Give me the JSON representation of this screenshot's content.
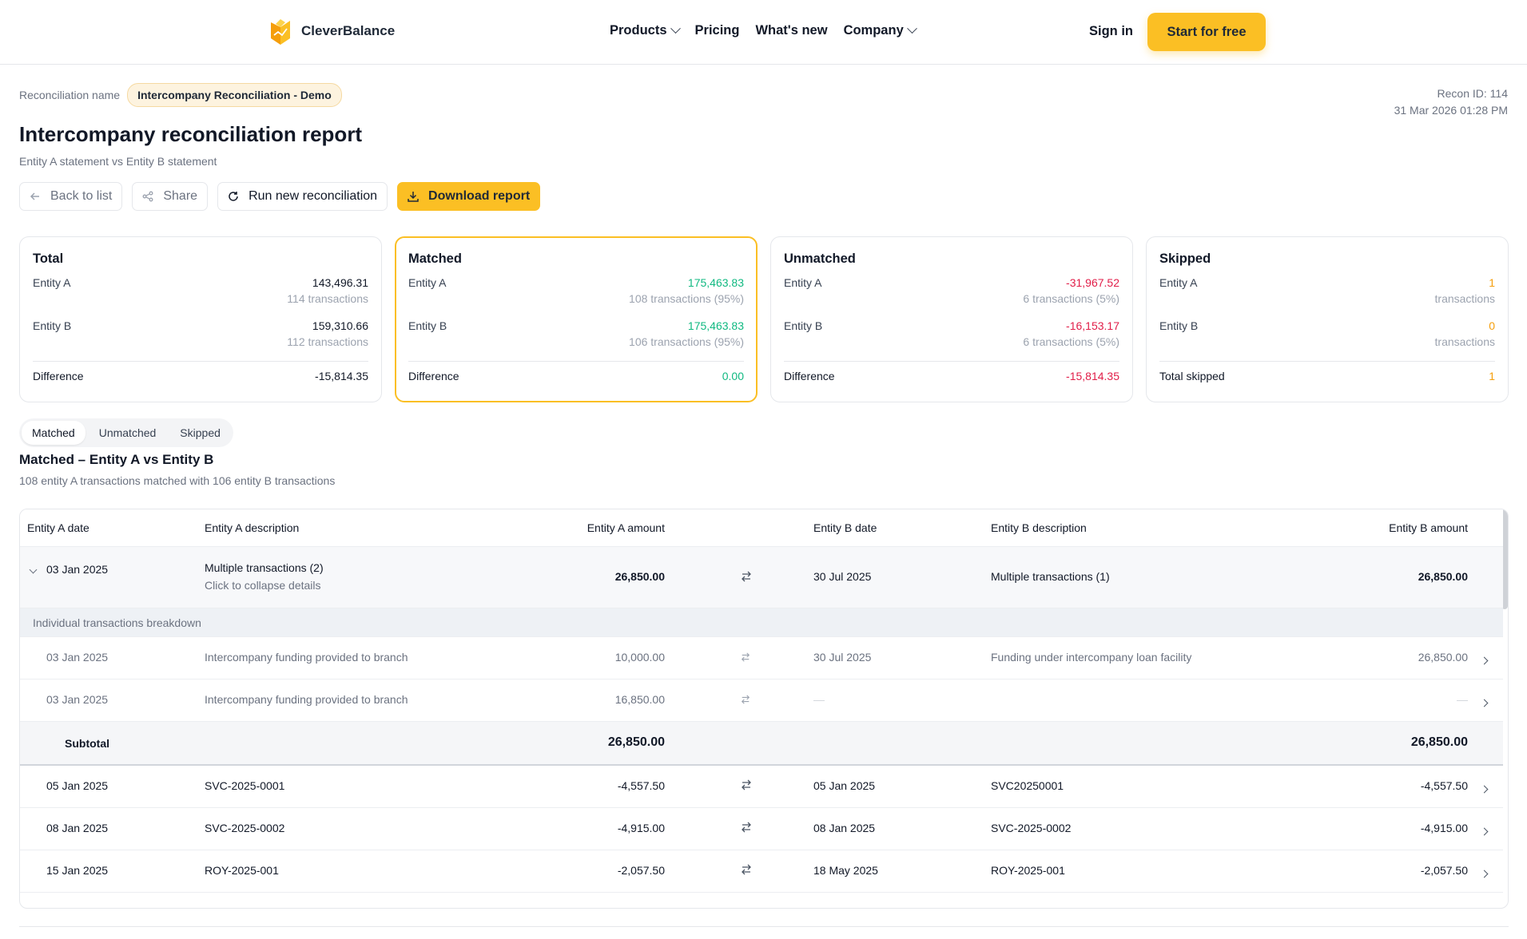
{
  "nav": {
    "brand": "CleverBalance",
    "links": [
      "Products",
      "Pricing",
      "What's new",
      "Company"
    ],
    "sign_in": "Sign in",
    "cta": "Start for free"
  },
  "header": {
    "recon_label": "Reconciliation name",
    "recon_name": "Intercompany Reconciliation - Demo",
    "recon_id": "Recon ID: 114",
    "timestamp": "31 Mar 2026 01:28 PM",
    "title": "Intercompany reconciliation report",
    "subtitle": "Entity A statement vs Entity B statement"
  },
  "actions": {
    "back": "Back to list",
    "share": "Share",
    "run": "Run new reconciliation",
    "download": "Download report"
  },
  "cards": {
    "total": {
      "title": "Total",
      "a_label": "Entity A",
      "a_value": "143,496.31",
      "a_sub": "114 transactions",
      "b_label": "Entity B",
      "b_value": "159,310.66",
      "b_sub": "112 transactions",
      "diff_label": "Difference",
      "diff_value": "-15,814.35"
    },
    "matched": {
      "title": "Matched",
      "a_label": "Entity A",
      "a_value": "175,463.83",
      "a_sub": "108 transactions (95%)",
      "b_label": "Entity B",
      "b_value": "175,463.83",
      "b_sub": "106 transactions (95%)",
      "diff_label": "Difference",
      "diff_value": "0.00"
    },
    "unmatched": {
      "title": "Unmatched",
      "a_label": "Entity A",
      "a_value": "-31,967.52",
      "a_sub": "6 transactions (5%)",
      "b_label": "Entity B",
      "b_value": "-16,153.17",
      "b_sub": "6 transactions (5%)",
      "diff_label": "Difference",
      "diff_value": "-15,814.35"
    },
    "skipped": {
      "title": "Skipped",
      "a_label": "Entity A",
      "a_value": "1",
      "a_sub": "transactions",
      "b_label": "Entity B",
      "b_value": "0",
      "b_sub": "transactions",
      "diff_label": "Total skipped",
      "diff_value": "1"
    }
  },
  "tabs": [
    "Matched",
    "Unmatched",
    "Skipped"
  ],
  "section": {
    "title": "Matched – Entity A vs Entity B",
    "subtitle": "108 entity A transactions matched with 106 entity B transactions"
  },
  "table": {
    "headers": [
      "Entity A date",
      "Entity A description",
      "Entity A amount",
      "Entity B date",
      "Entity B description",
      "Entity B amount"
    ],
    "group": {
      "a_date": "03 Jan 2025",
      "a_desc": "Multiple transactions (2)",
      "a_hint": "Click to collapse details",
      "a_amount": "26,850.00",
      "b_date": "30 Jul 2025",
      "b_desc": "Multiple transactions (1)",
      "b_amount": "26,850.00"
    },
    "breakdown_label": "Individual transactions breakdown",
    "sub_rows": [
      {
        "a_date": "03 Jan 2025",
        "a_desc": "Intercompany funding provided to branch",
        "a_amount": "10,000.00",
        "b_date": "30 Jul 2025",
        "b_desc": "Funding under intercompany loan facility",
        "b_amount": "26,850.00"
      },
      {
        "a_date": "03 Jan 2025",
        "a_desc": "Intercompany funding provided to branch",
        "a_amount": "16,850.00",
        "b_date": "—",
        "b_desc": "",
        "b_amount": "—"
      }
    ],
    "subtotal": {
      "label": "Subtotal",
      "a_amount": "26,850.00",
      "b_amount": "26,850.00"
    },
    "rows": [
      {
        "a_date": "05 Jan 2025",
        "a_desc": "SVC-2025-0001",
        "a_amount": "-4,557.50",
        "b_date": "05 Jan 2025",
        "b_desc": "SVC20250001",
        "b_amount": "-4,557.50"
      },
      {
        "a_date": "08 Jan 2025",
        "a_desc": "SVC-2025-0002",
        "a_amount": "-4,915.00",
        "b_date": "08 Jan 2025",
        "b_desc": "SVC-2025-0002",
        "b_amount": "-4,915.00"
      },
      {
        "a_date": "15 Jan 2025",
        "a_desc": "ROY-2025-001",
        "a_amount": "-2,057.50",
        "b_date": "18 May 2025",
        "b_desc": "ROY-2025-001",
        "b_amount": "-2,057.50"
      }
    ]
  },
  "colors": {
    "accent": "#fbbf24",
    "positive": "#10b981",
    "negative": "#e11d48",
    "skipped": "#f59e0b"
  }
}
